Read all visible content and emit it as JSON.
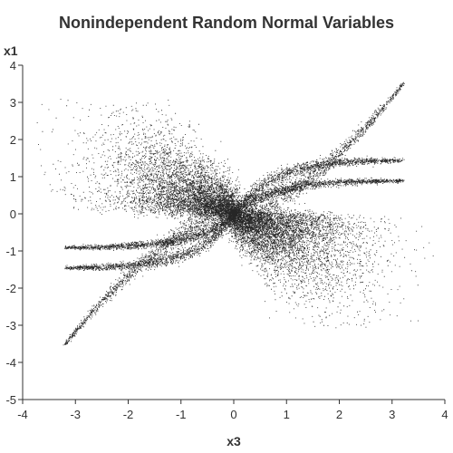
{
  "chart_data": {
    "type": "scatter",
    "title": "Nonindependent Random Normal Variables",
    "xlabel": "x3",
    "ylabel": "x1",
    "xlim": [
      -4,
      4
    ],
    "ylim": [
      -5,
      4
    ],
    "xticks": [
      "-4",
      "-3",
      "-2",
      "-1",
      "0",
      "1",
      "2",
      "3",
      "4"
    ],
    "yticks": [
      "4",
      "3",
      "2",
      "1",
      "0",
      "-1",
      "-2",
      "-3",
      "-4",
      "-5"
    ],
    "grid": false,
    "legend": "none",
    "marker_color": "#000000",
    "series": [
      {
        "approximate_structure": "dense cloud of small dots with branching arms",
        "cloud_upper_left": {
          "x_range": [
            -3.8,
            0.5
          ],
          "y_range": [
            -0.3,
            3.0
          ],
          "x_center": -1.0,
          "y_center": 0.6
        },
        "cloud_lower_right": {
          "x_range": [
            -0.3,
            3.8
          ],
          "y_range": [
            -3.0,
            0.4
          ],
          "x_center": 1.0,
          "y_center": -0.6
        },
        "arms": [
          {
            "from": [
              0.0,
              0.0
            ],
            "to": [
              3.2,
              3.5
            ]
          },
          {
            "from": [
              0.0,
              0.0
            ],
            "to": [
              3.2,
              1.45
            ]
          },
          {
            "from": [
              0.0,
              0.0
            ],
            "to": [
              3.2,
              0.9
            ]
          },
          {
            "from": [
              0.0,
              0.0
            ],
            "to": [
              -3.2,
              -0.9
            ]
          },
          {
            "from": [
              0.0,
              0.0
            ],
            "to": [
              -3.2,
              -1.45
            ]
          },
          {
            "from": [
              0.0,
              0.0
            ],
            "to": [
              -3.2,
              -3.5
            ]
          }
        ]
      }
    ]
  }
}
